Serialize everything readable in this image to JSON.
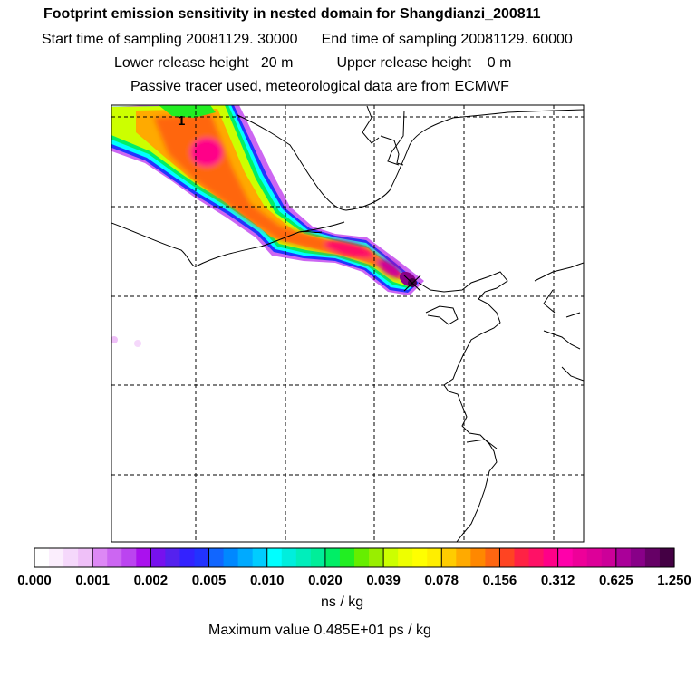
{
  "header": {
    "title": "Footprint emission sensitivity in nested domain for Shangdianzi_200811",
    "start_label": "Start time of sampling 20081129. 30000",
    "end_label": "End time of sampling 20081129. 60000",
    "lower_label": "Lower release height   20 m",
    "upper_label": "Upper release height    0 m",
    "tracer_label": "Passive tracer used, meteorological data are from ECMWF"
  },
  "chart_data": {
    "type": "heatmap",
    "title": "Footprint emission sensitivity in nested domain for Shangdianzi_200811",
    "station": "Shangdianzi",
    "marker_label": "1",
    "grid": true,
    "colorbar": {
      "ticks": [
        "0.000",
        "0.001",
        "0.002",
        "0.005",
        "0.010",
        "0.020",
        "0.039",
        "0.078",
        "0.156",
        "0.312",
        "0.625",
        "1.250"
      ],
      "colors": [
        "#ffffff",
        "#fbeefd",
        "#f5d8fb",
        "#efc0f8",
        "#dd88f5",
        "#cc66f2",
        "#bb44f0",
        "#aa11ee",
        "#7711ee",
        "#5522ee",
        "#3322ff",
        "#2233ff",
        "#1166ff",
        "#0088ff",
        "#00aaff",
        "#00ccff",
        "#00ffff",
        "#00eedd",
        "#00eebb",
        "#00ee99",
        "#00ee66",
        "#22ee22",
        "#66ee00",
        "#99ee00",
        "#ccff00",
        "#eeff00",
        "#ffff00",
        "#ffee00",
        "#ffcc00",
        "#ffaa00",
        "#ff8800",
        "#ff6611",
        "#ff4422",
        "#ff2244",
        "#ff1166",
        "#ff0088",
        "#ff00aa",
        "#ee0099",
        "#dd0099",
        "#cc0099",
        "#aa0099",
        "#880088",
        "#660066",
        "#440044"
      ],
      "units": "ns / kg"
    },
    "max_value_label": "Maximum value  0.485E+01 ps / kg"
  }
}
